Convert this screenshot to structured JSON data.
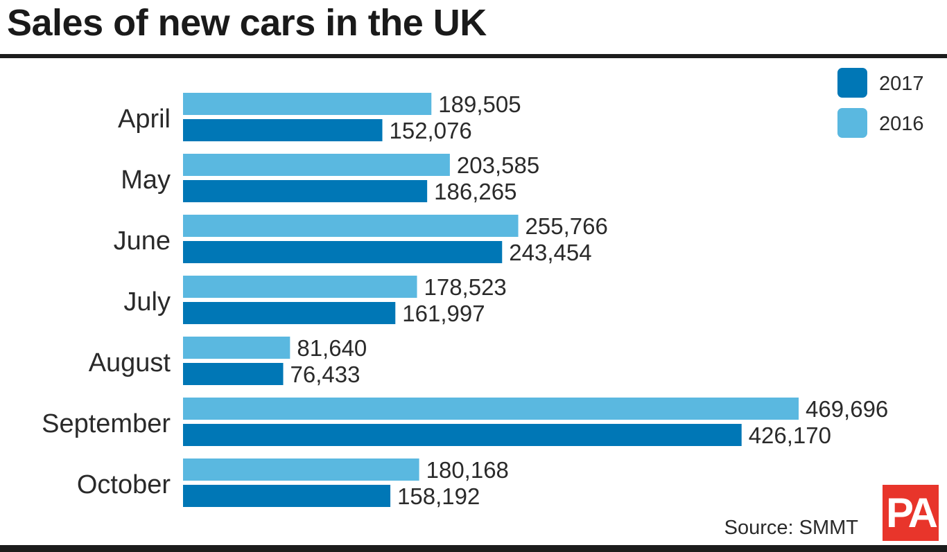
{
  "title": "Sales of new cars in the UK",
  "source": "Source: SMMT",
  "logo_text": "PA",
  "colors": {
    "series_2016": "#5ab8e0",
    "series_2017": "#0077b6",
    "rules": "#1c1c1c",
    "logo_bg": "#e8352b"
  },
  "chart_data": {
    "type": "bar",
    "orientation": "horizontal",
    "categories": [
      "April",
      "May",
      "June",
      "July",
      "August",
      "September",
      "October"
    ],
    "series": [
      {
        "name": "2016",
        "values": [
          189505,
          203585,
          255766,
          178523,
          81640,
          469696,
          180168
        ],
        "labels": [
          "189,505",
          "203,585",
          "255,766",
          "178,523",
          "81,640",
          "469,696",
          "180,168"
        ]
      },
      {
        "name": "2017",
        "values": [
          152076,
          186265,
          243454,
          161997,
          76433,
          426170,
          158192
        ],
        "labels": [
          "152,076",
          "186,265",
          "243,454",
          "161,997",
          "76,433",
          "426,170",
          "158,192"
        ]
      }
    ],
    "legend": {
      "position": "top-right",
      "order": [
        "2017",
        "2016"
      ]
    },
    "xlim": [
      0,
      469696
    ],
    "grid": false
  }
}
